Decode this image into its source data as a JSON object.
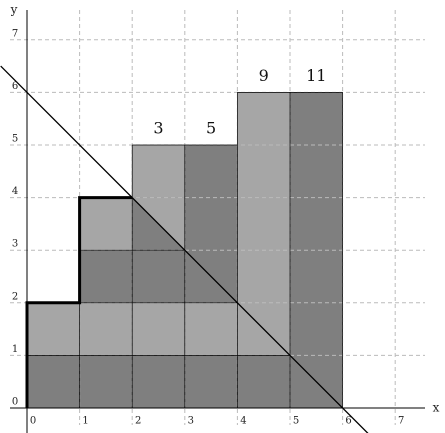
{
  "axes": {
    "x_label": "x",
    "y_label": "y",
    "x_ticks": [
      0,
      1,
      2,
      3,
      4,
      5,
      6,
      7
    ],
    "y_ticks": [
      0,
      1,
      2,
      3,
      4,
      5,
      6,
      7
    ]
  },
  "column_labels": [
    "3",
    "5",
    "9",
    "11"
  ]
}
